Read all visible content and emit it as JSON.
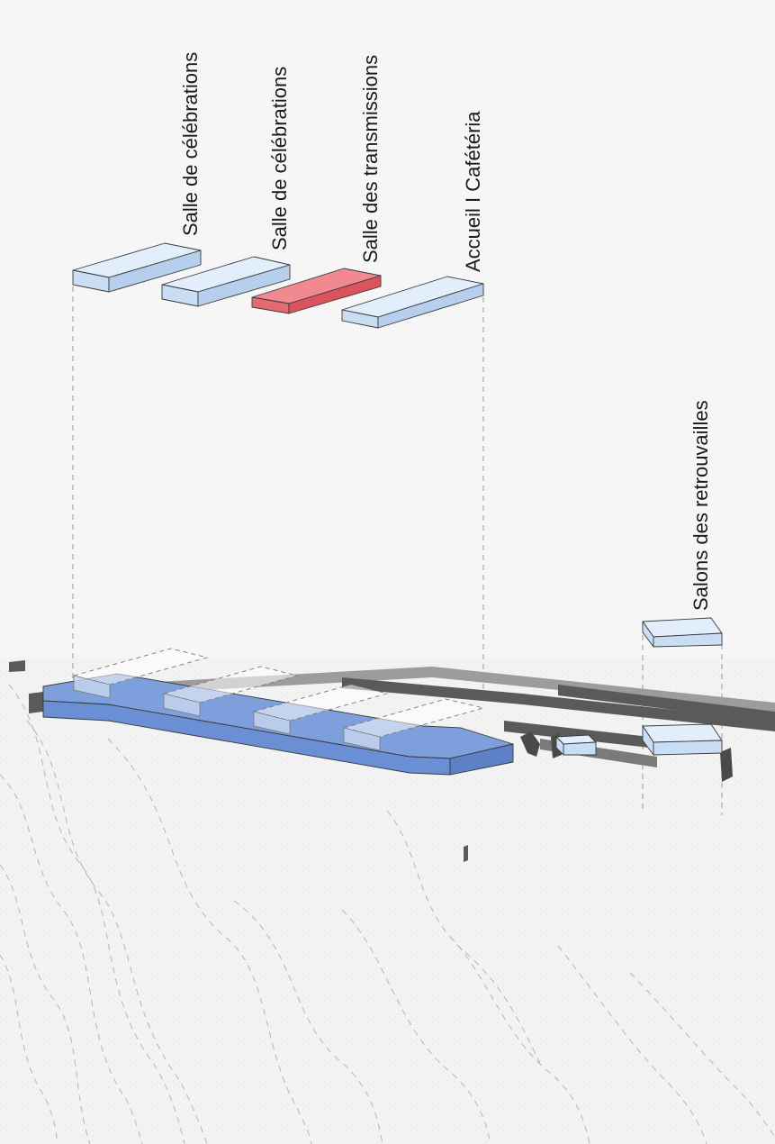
{
  "labels": {
    "celebrations_1": "Salle de célébrations",
    "celebrations_2": "Salle de célébrations",
    "transmissions": "Salle des transmissions",
    "accueil": "Accueil I Cafétéria",
    "retrouvailles": "Salons des retrouvailles"
  },
  "colors": {
    "background": "#f6f6f6",
    "volume_light_blue_top": "#e2eefb",
    "volume_light_blue_front": "#c9def5",
    "volume_light_blue_side": "#b5cfec",
    "volume_red_top": "#f18a90",
    "volume_red_front": "#e56a72",
    "volume_red_side": "#d9545d",
    "building_blue_top": "#7d9fdb",
    "building_blue_front": "#6b8fd4",
    "wall_dark": "#5a5a5a",
    "wall_light": "#9c9c9c"
  },
  "volumes": [
    {
      "id": "celebrations-1",
      "highlight": false
    },
    {
      "id": "celebrations-2",
      "highlight": false
    },
    {
      "id": "transmissions",
      "highlight": true
    },
    {
      "id": "accueil",
      "highlight": false
    },
    {
      "id": "retrouvailles",
      "highlight": false
    }
  ]
}
